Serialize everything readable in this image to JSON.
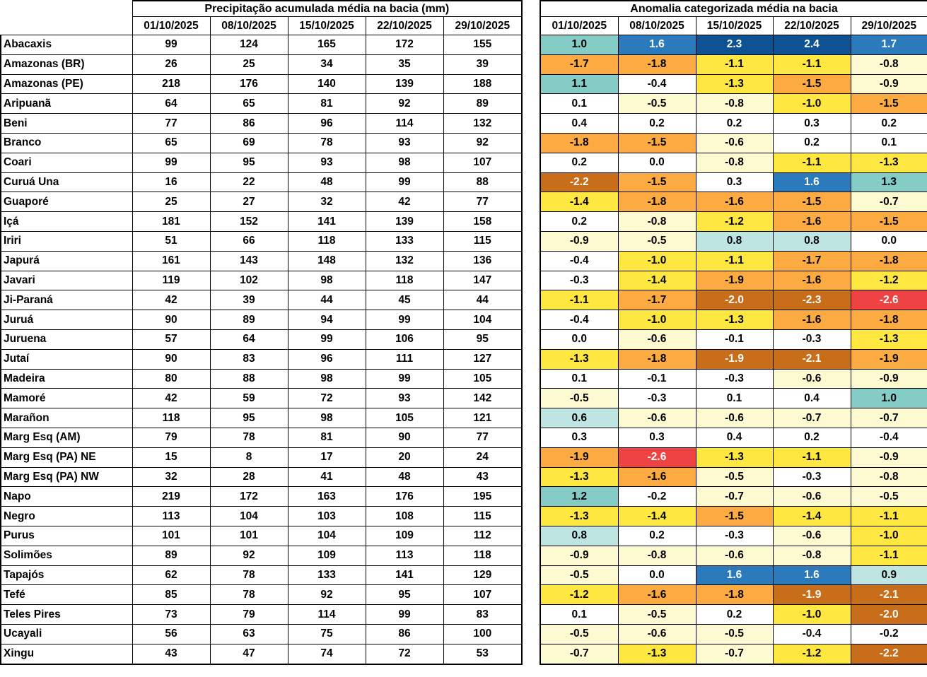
{
  "chart_data": [
    {
      "type": "table",
      "title": "Precipitação acumulada média na bacia (mm)",
      "columns": [
        "01/10/2025",
        "08/10/2025",
        "15/10/2025",
        "22/10/2025",
        "29/10/2025"
      ],
      "row_labels": [
        "Abacaxis",
        "Amazonas (BR)",
        "Amazonas (PE)",
        "Aripuanã",
        "Beni",
        "Branco",
        "Coari",
        "Curuá Una",
        "Guaporé",
        "Içá",
        "Iriri",
        "Japurá",
        "Javari",
        "Ji-Paraná",
        "Juruá",
        "Juruena",
        "Jutaí",
        "Madeira",
        "Mamoré",
        "Marañon",
        "Marg Esq (AM)",
        "Marg Esq (PA) NE",
        "Marg Esq (PA) NW",
        "Napo",
        "Negro",
        "Purus",
        "Solimões",
        "Tapajós",
        "Tefé",
        "Teles Pires",
        "Ucayali",
        "Xingu"
      ],
      "values": [
        [
          99,
          124,
          165,
          172,
          155
        ],
        [
          26,
          25,
          34,
          35,
          39
        ],
        [
          218,
          176,
          140,
          139,
          188
        ],
        [
          64,
          65,
          81,
          92,
          89
        ],
        [
          77,
          86,
          96,
          114,
          132
        ],
        [
          65,
          69,
          78,
          93,
          92
        ],
        [
          99,
          95,
          93,
          98,
          107
        ],
        [
          16,
          22,
          48,
          99,
          88
        ],
        [
          25,
          27,
          32,
          42,
          77
        ],
        [
          181,
          152,
          141,
          139,
          158
        ],
        [
          51,
          66,
          118,
          133,
          115
        ],
        [
          161,
          143,
          148,
          132,
          136
        ],
        [
          119,
          102,
          98,
          118,
          147
        ],
        [
          42,
          39,
          44,
          45,
          44
        ],
        [
          90,
          89,
          94,
          99,
          104
        ],
        [
          57,
          64,
          99,
          106,
          95
        ],
        [
          90,
          83,
          96,
          111,
          127
        ],
        [
          80,
          88,
          98,
          99,
          105
        ],
        [
          42,
          59,
          72,
          93,
          142
        ],
        [
          118,
          95,
          98,
          105,
          121
        ],
        [
          79,
          78,
          81,
          90,
          77
        ],
        [
          15,
          8,
          17,
          20,
          24
        ],
        [
          32,
          28,
          41,
          48,
          43
        ],
        [
          219,
          172,
          163,
          176,
          195
        ],
        [
          113,
          104,
          103,
          108,
          115
        ],
        [
          101,
          101,
          104,
          109,
          112
        ],
        [
          89,
          92,
          109,
          113,
          118
        ],
        [
          62,
          78,
          133,
          141,
          129
        ],
        [
          85,
          78,
          92,
          95,
          107
        ],
        [
          73,
          79,
          114,
          99,
          83
        ],
        [
          56,
          63,
          75,
          86,
          100
        ],
        [
          43,
          47,
          74,
          72,
          53
        ]
      ]
    },
    {
      "type": "heatmap",
      "title": "Anomalia categorizada média na bacia",
      "columns": [
        "01/10/2025",
        "08/10/2025",
        "15/10/2025",
        "22/10/2025",
        "29/10/2025"
      ],
      "row_labels": [
        "Abacaxis",
        "Amazonas (BR)",
        "Amazonas (PE)",
        "Aripuanã",
        "Beni",
        "Branco",
        "Coari",
        "Curuá Una",
        "Guaporé",
        "Içá",
        "Iriri",
        "Japurá",
        "Javari",
        "Ji-Paraná",
        "Juruá",
        "Juruena",
        "Jutaí",
        "Madeira",
        "Mamoré",
        "Marañon",
        "Marg Esq (AM)",
        "Marg Esq (PA) NE",
        "Marg Esq (PA) NW",
        "Napo",
        "Negro",
        "Purus",
        "Solimões",
        "Tapajós",
        "Tefé",
        "Teles Pires",
        "Ucayali",
        "Xingu"
      ],
      "values": [
        [
          1.0,
          1.6,
          2.3,
          2.4,
          1.7
        ],
        [
          -1.7,
          -1.8,
          -1.1,
          -1.1,
          -0.8
        ],
        [
          1.1,
          -0.4,
          -1.3,
          -1.5,
          -0.9
        ],
        [
          0.1,
          -0.5,
          -0.8,
          -1.0,
          -1.5
        ],
        [
          0.4,
          0.2,
          0.2,
          0.3,
          0.2
        ],
        [
          -1.8,
          -1.5,
          -0.6,
          0.2,
          0.1
        ],
        [
          0.2,
          0.0,
          -0.8,
          -1.1,
          -1.3
        ],
        [
          -2.2,
          -1.5,
          0.3,
          1.6,
          1.3
        ],
        [
          -1.4,
          -1.8,
          -1.6,
          -1.5,
          -0.7
        ],
        [
          0.2,
          -0.8,
          -1.2,
          -1.6,
          -1.5
        ],
        [
          -0.9,
          -0.5,
          0.8,
          0.8,
          0.0
        ],
        [
          -0.4,
          -1.0,
          -1.1,
          -1.7,
          -1.8
        ],
        [
          -0.3,
          -1.4,
          -1.9,
          -1.6,
          -1.2
        ],
        [
          -1.1,
          -1.7,
          -2.0,
          -2.3,
          -2.6
        ],
        [
          -0.4,
          -1.0,
          -1.3,
          -1.6,
          -1.8
        ],
        [
          0.0,
          -0.6,
          -0.1,
          -0.3,
          -1.3
        ],
        [
          -1.3,
          -1.8,
          -1.9,
          -2.1,
          -1.9
        ],
        [
          0.1,
          -0.1,
          -0.3,
          -0.6,
          -0.9
        ],
        [
          -0.5,
          -0.3,
          0.1,
          0.4,
          1.0
        ],
        [
          0.6,
          -0.6,
          -0.6,
          -0.7,
          -0.7
        ],
        [
          0.3,
          0.3,
          0.4,
          0.2,
          -0.4
        ],
        [
          -1.9,
          -2.6,
          -1.3,
          -1.1,
          -0.9
        ],
        [
          -1.3,
          -1.6,
          -0.5,
          -0.3,
          -0.8
        ],
        [
          1.2,
          -0.2,
          -0.7,
          -0.6,
          -0.5
        ],
        [
          -1.3,
          -1.4,
          -1.5,
          -1.4,
          -1.1
        ],
        [
          0.8,
          0.2,
          -0.3,
          -0.6,
          -1.0
        ],
        [
          -0.9,
          -0.8,
          -0.6,
          -0.8,
          -1.1
        ],
        [
          -0.5,
          0.0,
          1.6,
          1.6,
          0.9
        ],
        [
          -1.2,
          -1.6,
          -1.8,
          -1.9,
          -2.1
        ],
        [
          0.1,
          -0.5,
          0.2,
          -1.0,
          -2.0
        ],
        [
          -0.5,
          -0.6,
          -0.5,
          -0.4,
          -0.2
        ],
        [
          -0.7,
          -1.3,
          -0.7,
          -1.2,
          -2.2
        ]
      ],
      "cell_categories": [
        [
          "teal",
          "blue1",
          "blue2",
          "blue2",
          "blue1"
        ],
        [
          "orange",
          "orange",
          "yellow",
          "yellow",
          "paleyellow"
        ],
        [
          "teal",
          "white",
          "yellow",
          "orange",
          "paleyellow"
        ],
        [
          "white",
          "paleyellow",
          "paleyellow",
          "yellow",
          "orange"
        ],
        [
          "white",
          "white",
          "white",
          "white",
          "white"
        ],
        [
          "orange",
          "orange",
          "paleyellow",
          "white",
          "white"
        ],
        [
          "white",
          "white",
          "paleyellow",
          "yellow",
          "yellow"
        ],
        [
          "darkorange",
          "orange",
          "white",
          "blue1",
          "teal"
        ],
        [
          "yellow",
          "orange",
          "orange",
          "orange",
          "paleyellow"
        ],
        [
          "white",
          "paleyellow",
          "yellow",
          "orange",
          "orange"
        ],
        [
          "paleyellow",
          "paleyellow",
          "cyan",
          "cyan",
          "white"
        ],
        [
          "white",
          "yellow",
          "yellow",
          "orange",
          "orange"
        ],
        [
          "white",
          "yellow",
          "orange",
          "orange",
          "yellow"
        ],
        [
          "yellow",
          "orange",
          "darkorange",
          "darkorange",
          "red"
        ],
        [
          "white",
          "yellow",
          "yellow",
          "orange",
          "orange"
        ],
        [
          "white",
          "paleyellow",
          "white",
          "white",
          "yellow"
        ],
        [
          "yellow",
          "orange",
          "darkorange",
          "darkorange",
          "orange"
        ],
        [
          "white",
          "white",
          "white",
          "paleyellow",
          "paleyellow"
        ],
        [
          "paleyellow",
          "white",
          "white",
          "white",
          "teal"
        ],
        [
          "cyan",
          "paleyellow",
          "paleyellow",
          "paleyellow",
          "paleyellow"
        ],
        [
          "white",
          "white",
          "white",
          "white",
          "white"
        ],
        [
          "orange",
          "red",
          "yellow",
          "yellow",
          "paleyellow"
        ],
        [
          "yellow",
          "orange",
          "paleyellow",
          "white",
          "paleyellow"
        ],
        [
          "teal",
          "white",
          "paleyellow",
          "paleyellow",
          "paleyellow"
        ],
        [
          "yellow",
          "yellow",
          "orange",
          "yellow",
          "yellow"
        ],
        [
          "cyan",
          "white",
          "white",
          "paleyellow",
          "yellow"
        ],
        [
          "paleyellow",
          "paleyellow",
          "paleyellow",
          "paleyellow",
          "yellow"
        ],
        [
          "paleyellow",
          "white",
          "blue1",
          "blue1",
          "cyan"
        ],
        [
          "yellow",
          "orange",
          "orange",
          "darkorange",
          "darkorange"
        ],
        [
          "white",
          "paleyellow",
          "white",
          "yellow",
          "darkorange"
        ],
        [
          "paleyellow",
          "paleyellow",
          "paleyellow",
          "white",
          "white"
        ],
        [
          "paleyellow",
          "yellow",
          "paleyellow",
          "yellow",
          "darkorange"
        ]
      ],
      "palette": {
        "blue2": {
          "bg": "#0e5293",
          "fg": "#ffffff"
        },
        "blue1": {
          "bg": "#2b7abc",
          "fg": "#ffffff"
        },
        "teal": {
          "bg": "#84ccc5",
          "fg": "#000000"
        },
        "cyan": {
          "bg": "#bfe5e3",
          "fg": "#000000"
        },
        "white": {
          "bg": "#ffffff",
          "fg": "#000000"
        },
        "paleyellow": {
          "bg": "#fdf9d0",
          "fg": "#000000"
        },
        "yellow": {
          "bg": "#ffe742",
          "fg": "#000000"
        },
        "orange": {
          "bg": "#fbab41",
          "fg": "#000000"
        },
        "darkorange": {
          "bg": "#c86d1a",
          "fg": "#ffffff"
        },
        "red": {
          "bg": "#ef4242",
          "fg": "#ffffff"
        }
      }
    }
  ]
}
